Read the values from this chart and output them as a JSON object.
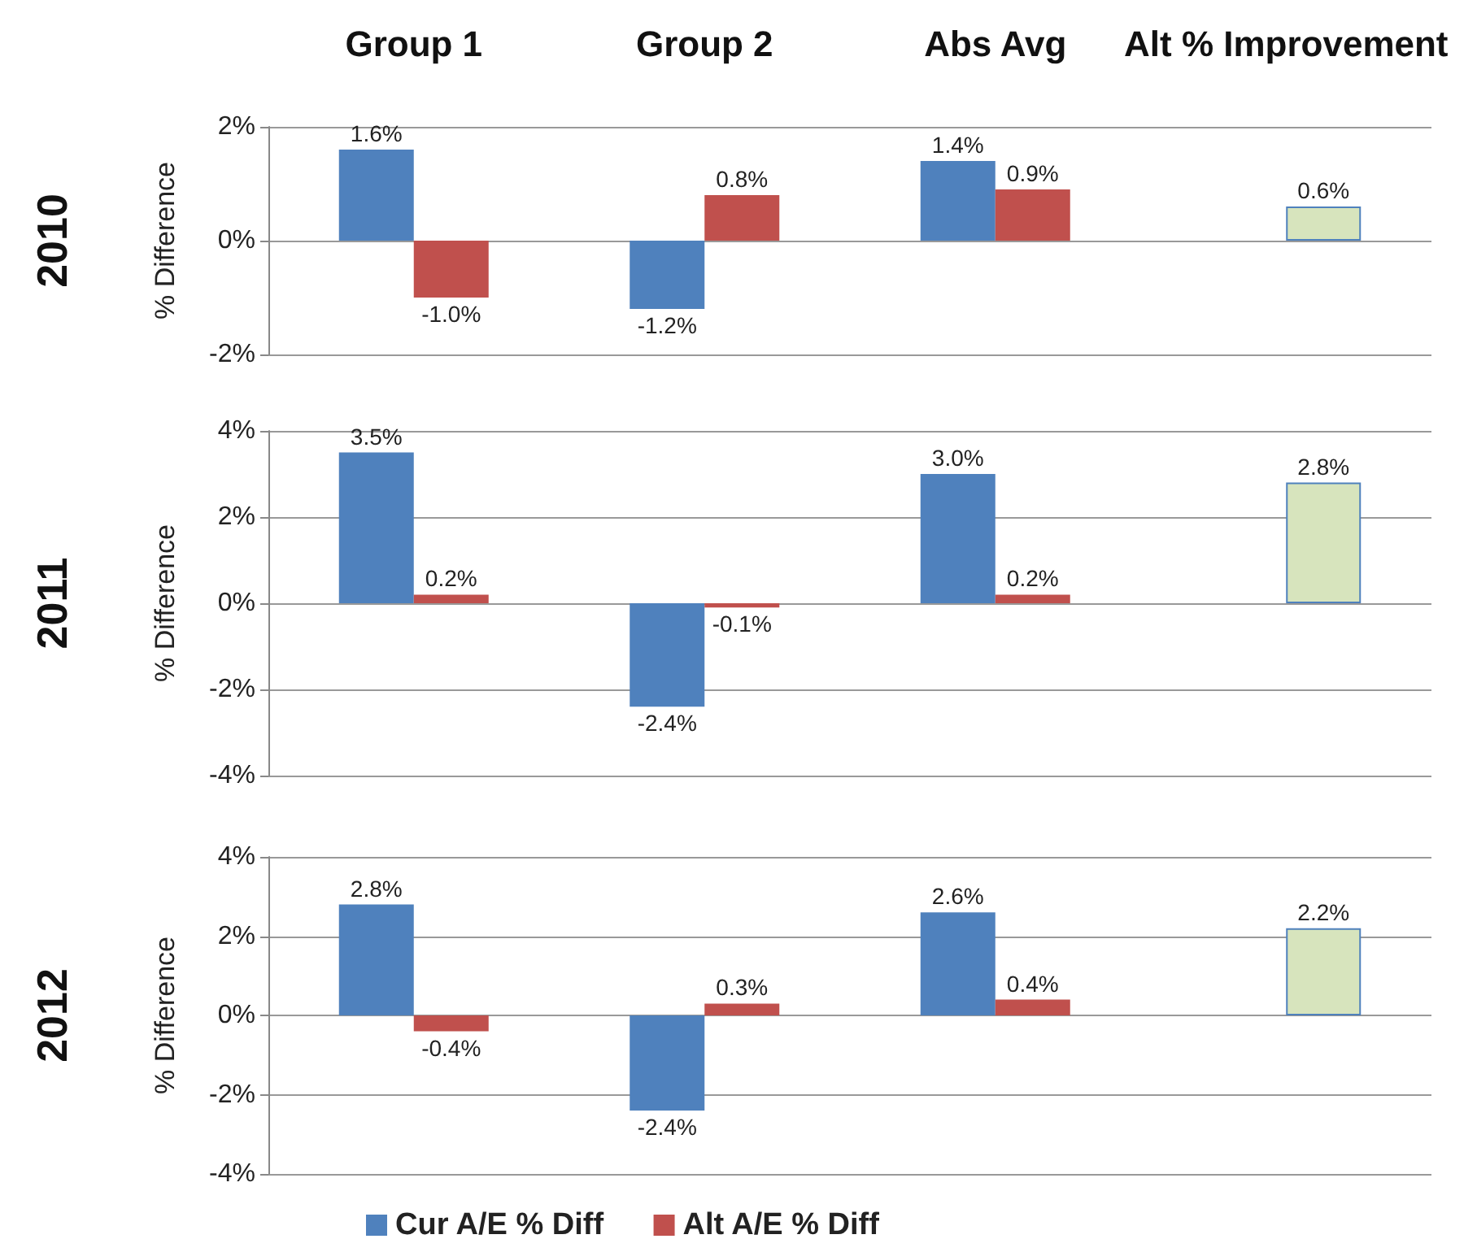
{
  "chart_data": [
    {
      "type": "bar",
      "title": "2010",
      "ylabel": "% Difference",
      "categories": [
        "Group 1",
        "Group 2",
        "Abs Avg",
        "Alt % Improvement"
      ],
      "ylim": [
        -2,
        2
      ],
      "yticks": [
        {
          "value": -2,
          "label": "-2%"
        },
        {
          "value": 0,
          "label": "0%"
        },
        {
          "value": 2,
          "label": "2%"
        }
      ],
      "grid": "y",
      "legend": false,
      "series": [
        {
          "color": "#4f81bd",
          "values": [
            1.6,
            -1.2,
            1.4,
            null
          ],
          "value_labels": [
            "1.6%",
            "-1.2%",
            "1.4%",
            null
          ]
        },
        {
          "color": "#c0504d",
          "values": [
            -1.0,
            0.8,
            0.9,
            null
          ],
          "value_labels": [
            "-1.0%",
            "0.8%",
            "0.9%",
            null
          ]
        },
        {
          "color": "#d7e4bd",
          "values": [
            null,
            null,
            null,
            0.6
          ],
          "value_labels": [
            null,
            null,
            null,
            "0.6%"
          ]
        }
      ]
    },
    {
      "type": "bar",
      "title": "2011",
      "ylabel": "% Difference",
      "categories": [
        null,
        null,
        null,
        null
      ],
      "ylim": [
        -4,
        4
      ],
      "yticks": [
        {
          "value": -4,
          "label": "-4%"
        },
        {
          "value": -2,
          "label": "-2%"
        },
        {
          "value": 0,
          "label": "0%"
        },
        {
          "value": 2,
          "label": "2%"
        },
        {
          "value": 4,
          "label": "4%"
        }
      ],
      "grid": "y",
      "legend": false,
      "tick_labels": "y",
      "series": [
        {
          "color": "#4f81bd",
          "values": [
            3.5,
            -2.4,
            3.0,
            null
          ],
          "value_labels": [
            "3.5%",
            "-2.4%",
            "3.0%",
            null
          ]
        },
        {
          "color": "#c0504d",
          "values": [
            0.2,
            -0.1,
            0.2,
            null
          ],
          "value_labels": [
            "0.2%",
            "-0.1%",
            "0.2%",
            null
          ]
        },
        {
          "color": "#d7e4bd",
          "values": [
            null,
            null,
            null,
            2.8
          ],
          "value_labels": [
            null,
            null,
            null,
            "2.8%"
          ]
        }
      ]
    },
    {
      "type": "bar",
      "title": "2012",
      "ylabel": "% Difference",
      "categories": [
        null,
        null,
        null,
        null
      ],
      "ylim": [
        -4,
        4
      ],
      "yticks": [
        {
          "value": -4,
          "label": "-4%"
        },
        {
          "value": -2,
          "label": "-2%"
        },
        {
          "value": 0,
          "label": "0%"
        },
        {
          "value": 2,
          "label": "2%"
        },
        {
          "value": 4,
          "label": "4%"
        }
      ],
      "grid": "y",
      "legend": "bottom",
      "tick_labels": "y",
      "series": [
        {
          "name": "Cur A/E % Diff",
          "color": "#4f81bd",
          "values": [
            2.8,
            -2.4,
            2.6,
            null
          ],
          "value_labels": [
            "2.8%",
            "-2.4%",
            "2.6%",
            null
          ]
        },
        {
          "name": "Alt A/E % Diff",
          "color": "#c0504d",
          "values": [
            -0.4,
            0.3,
            0.4,
            null
          ],
          "value_labels": [
            "-0.4%",
            "0.3%",
            "0.4%",
            null
          ]
        },
        {
          "color": "#d7e4bd",
          "values": [
            null,
            null,
            null,
            2.2
          ],
          "value_labels": [
            null,
            null,
            null,
            "2.2%"
          ]
        }
      ]
    }
  ]
}
